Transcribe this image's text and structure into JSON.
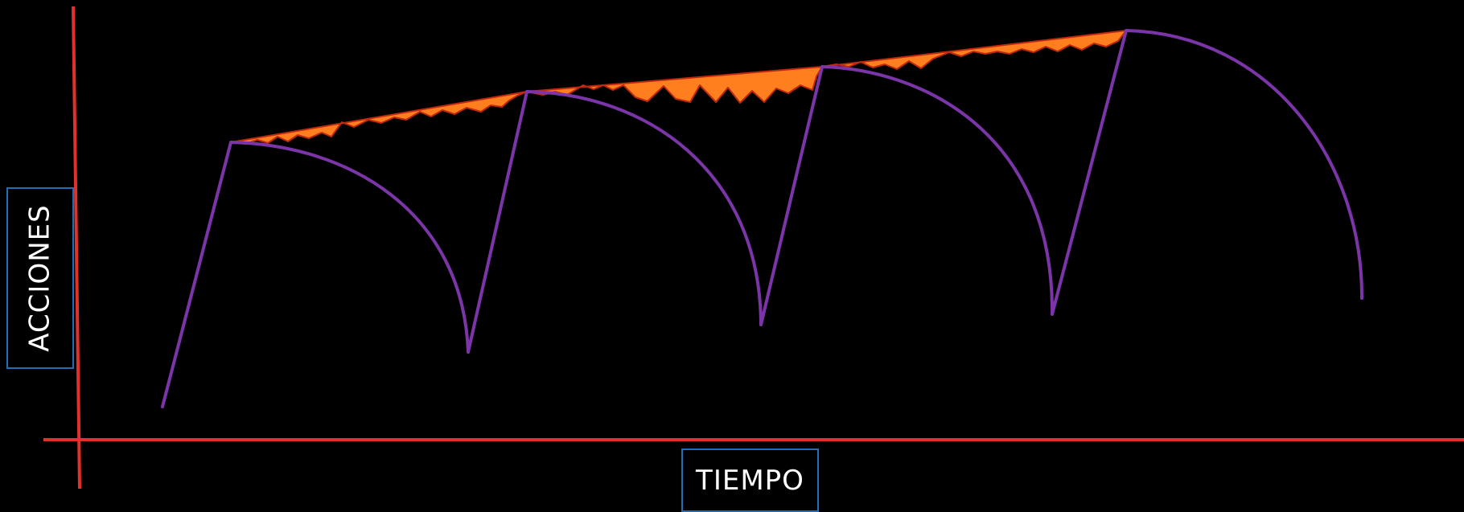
{
  "diagram": {
    "x_axis_label": "TIEMPO",
    "y_axis_label": "ACCIONES",
    "colors": {
      "background": "#000000",
      "axes": "#e0322a",
      "curves": "#7b35a8",
      "fill": "#ff7f1f",
      "fill_edge": "#c0290f",
      "label_border": "#1e6fb8",
      "label_text": "#ffffff"
    }
  }
}
